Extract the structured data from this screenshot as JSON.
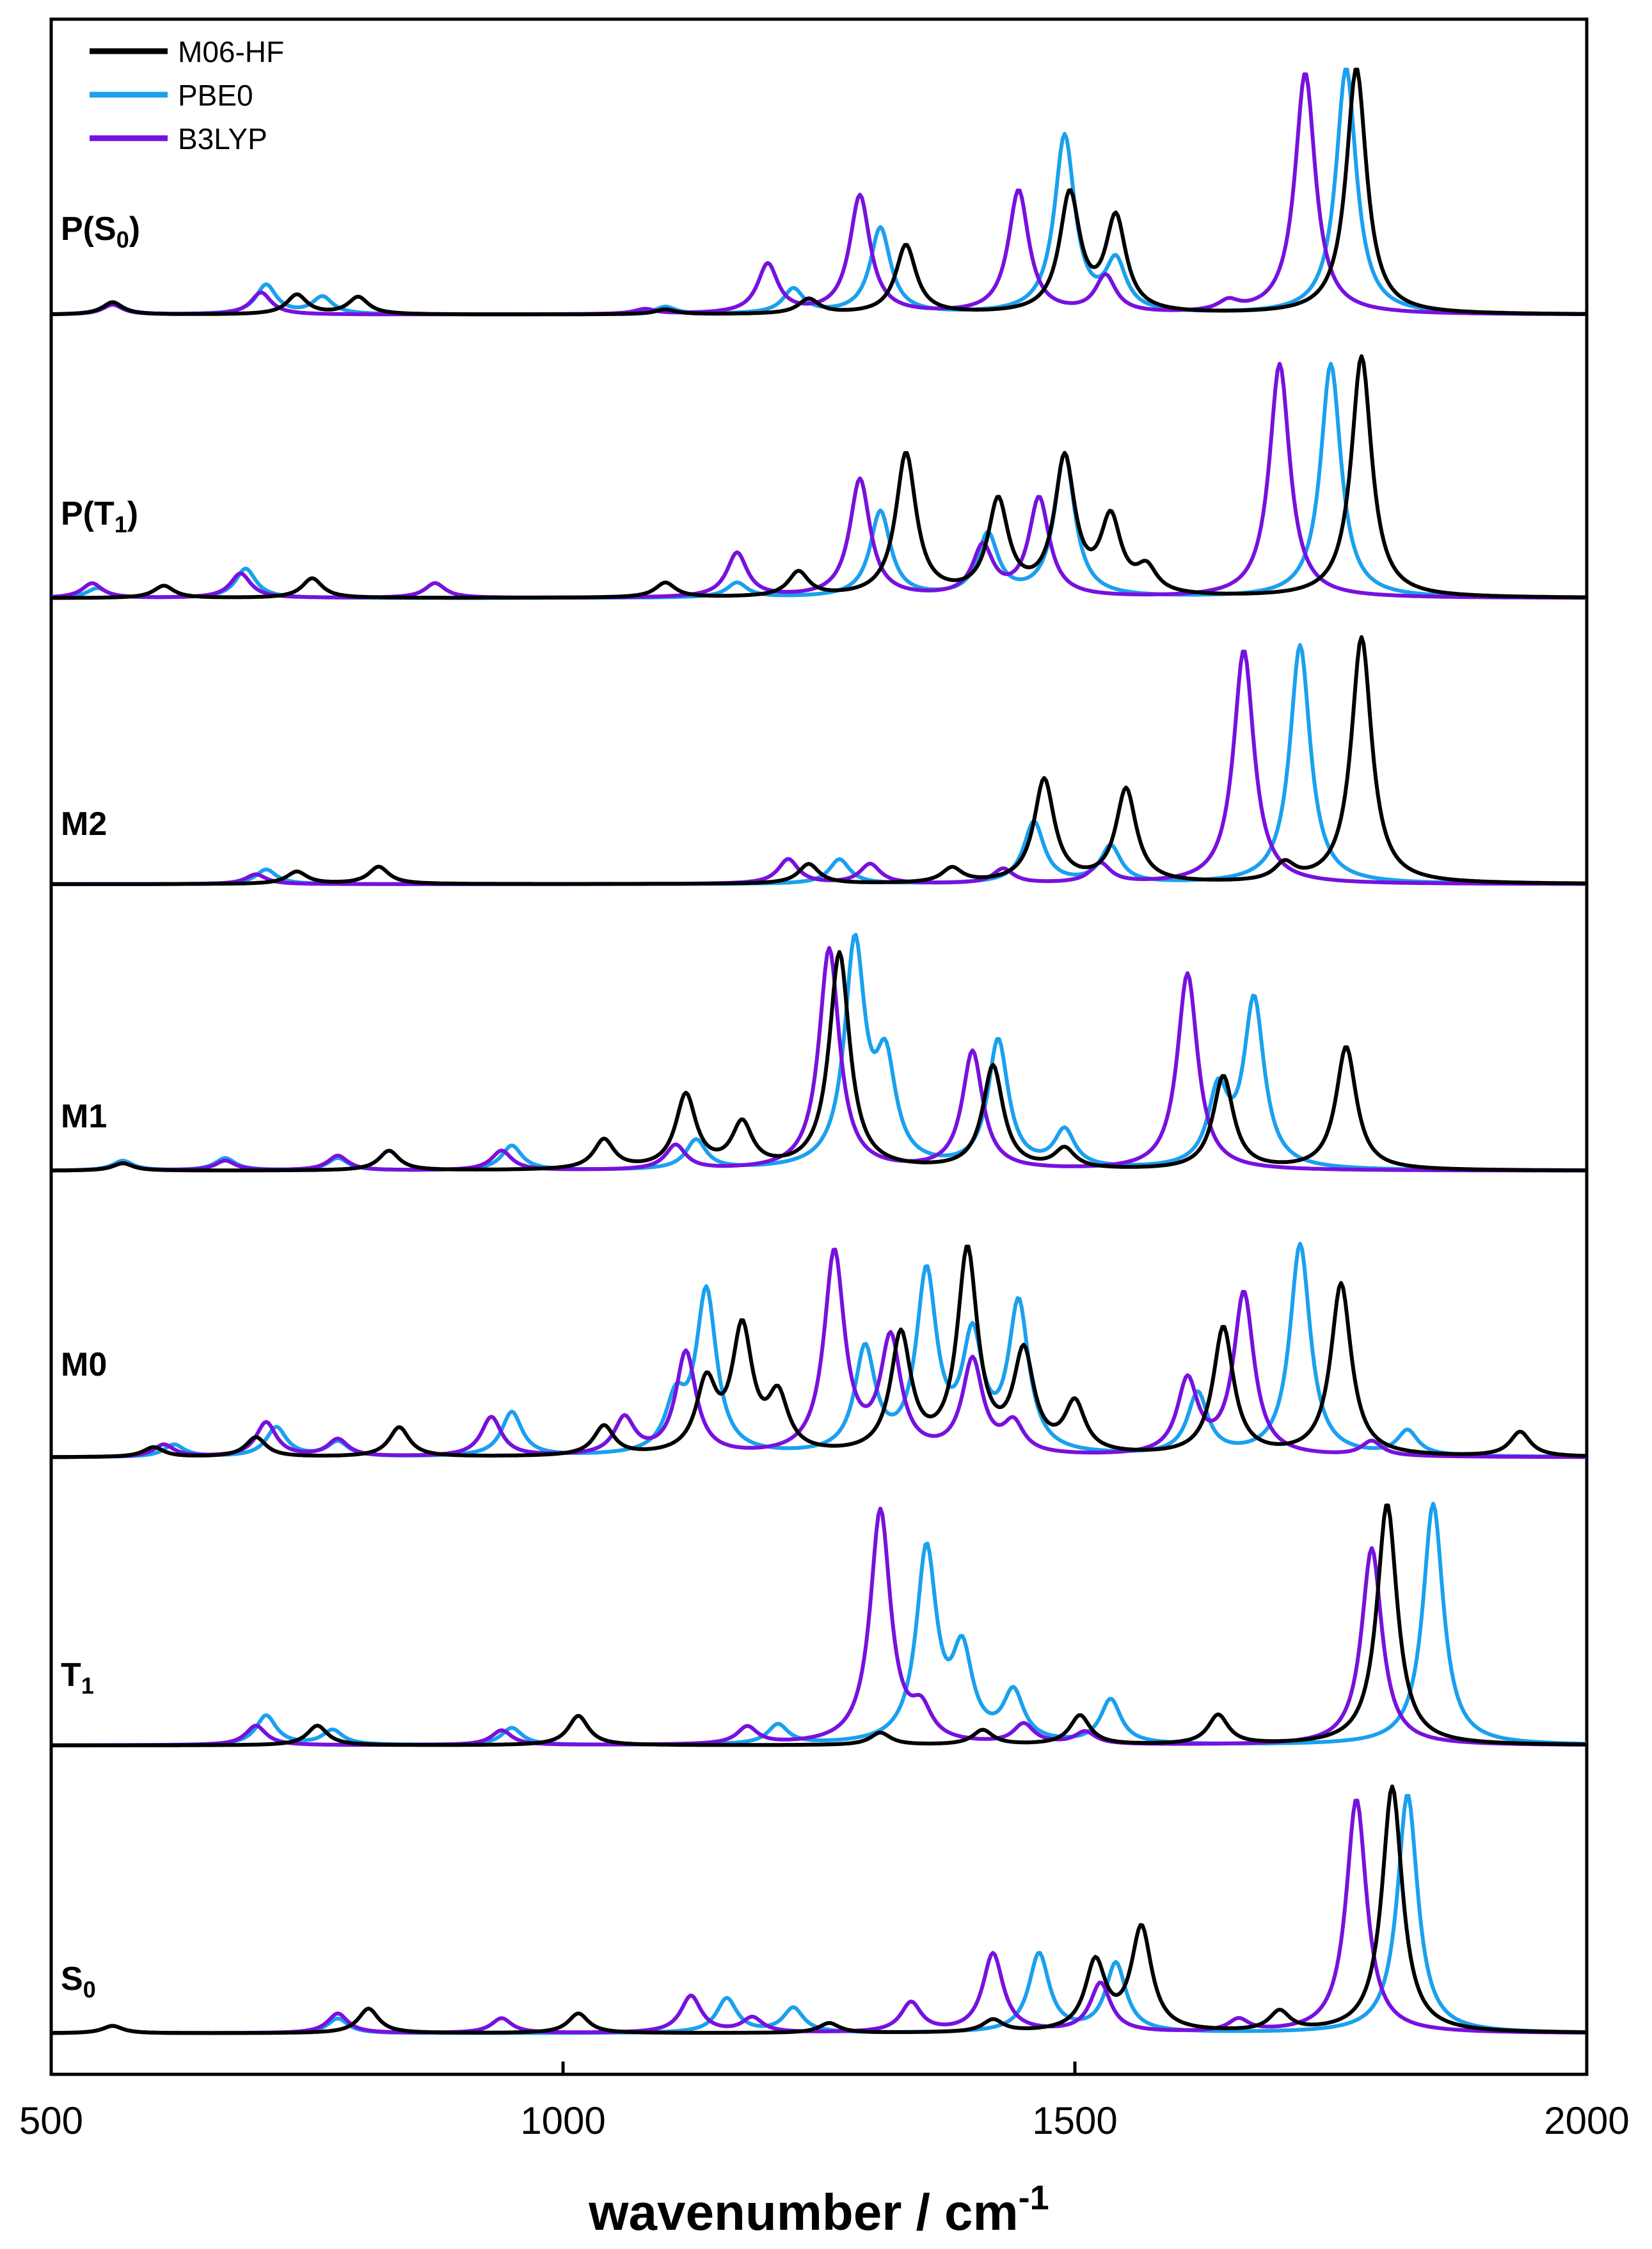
{
  "chart_data": {
    "type": "line",
    "title": "",
    "xlabel": "wavenumber / cm",
    "xlabel_superscript": "-1",
    "ylabel": "",
    "xlim": [
      500,
      2000
    ],
    "x_ticks": [
      500,
      1000,
      1500,
      2000
    ],
    "x_tick_labels": [
      "500",
      "1000",
      "1500",
      "2000"
    ],
    "legend": {
      "placement": "top-left",
      "entries": [
        {
          "name": "M06-HF",
          "color": "#000000"
        },
        {
          "name": "PBE0",
          "color": "#1aa0ee"
        },
        {
          "name": "B3LYP",
          "color": "#7711dd"
        }
      ]
    },
    "panels": [
      {
        "id": "PS0",
        "label_main": "P(S",
        "label_sub": "0",
        "label_end": ")",
        "series": [
          {
            "name": "M06-HF",
            "peaks": [
              [
                560,
                0.05
              ],
              [
                740,
                0.08
              ],
              [
                800,
                0.07
              ],
              [
                1100,
                0.02
              ],
              [
                1240,
                0.06
              ],
              [
                1335,
                0.28
              ],
              [
                1495,
                0.48
              ],
              [
                1540,
                0.38
              ],
              [
                1775,
                1.0
              ]
            ]
          },
          {
            "name": "PBE0",
            "peaks": [
              [
                560,
                0.05
              ],
              [
                710,
                0.12
              ],
              [
                765,
                0.07
              ],
              [
                1100,
                0.03
              ],
              [
                1225,
                0.1
              ],
              [
                1310,
                0.35
              ],
              [
                1490,
                0.72
              ],
              [
                1540,
                0.2
              ],
              [
                1765,
                1.0
              ]
            ]
          },
          {
            "name": "B3LYP",
            "peaks": [
              [
                560,
                0.04
              ],
              [
                705,
                0.09
              ],
              [
                1080,
                0.02
              ],
              [
                1200,
                0.2
              ],
              [
                1290,
                0.48
              ],
              [
                1445,
                0.5
              ],
              [
                1530,
                0.15
              ],
              [
                1650,
                0.04
              ],
              [
                1725,
                0.98
              ]
            ]
          }
        ]
      },
      {
        "id": "PT1",
        "label_main": "P(T",
        "label_sub": "1",
        "label_end": ")",
        "series": [
          {
            "name": "M06-HF",
            "peaks": [
              [
                610,
                0.05
              ],
              [
                755,
                0.08
              ],
              [
                1100,
                0.06
              ],
              [
                1230,
                0.1
              ],
              [
                1335,
                0.58
              ],
              [
                1425,
                0.38
              ],
              [
                1490,
                0.55
              ],
              [
                1535,
                0.3
              ],
              [
                1570,
                0.1
              ],
              [
                1780,
                0.98
              ]
            ]
          },
          {
            "name": "PBE0",
            "peaks": [
              [
                545,
                0.04
              ],
              [
                690,
                0.12
              ],
              [
                1170,
                0.06
              ],
              [
                1310,
                0.35
              ],
              [
                1415,
                0.25
              ],
              [
                1490,
                0.58
              ],
              [
                1750,
                0.95
              ]
            ]
          },
          {
            "name": "B3LYP",
            "peaks": [
              [
                540,
                0.06
              ],
              [
                685,
                0.1
              ],
              [
                875,
                0.06
              ],
              [
                1170,
                0.18
              ],
              [
                1290,
                0.48
              ],
              [
                1410,
                0.2
              ],
              [
                1465,
                0.4
              ],
              [
                1700,
                0.95
              ]
            ]
          }
        ]
      },
      {
        "id": "M2",
        "label_main": "M2",
        "label_sub": "",
        "label_end": "",
        "series": [
          {
            "name": "M06-HF",
            "peaks": [
              [
                740,
                0.05
              ],
              [
                820,
                0.07
              ],
              [
                1240,
                0.08
              ],
              [
                1380,
                0.06
              ],
              [
                1470,
                0.42
              ],
              [
                1550,
                0.38
              ],
              [
                1705,
                0.07
              ],
              [
                1780,
                1.0
              ]
            ]
          },
          {
            "name": "PBE0",
            "peaks": [
              [
                710,
                0.06
              ],
              [
                1270,
                0.1
              ],
              [
                1460,
                0.25
              ],
              [
                1535,
                0.15
              ],
              [
                1720,
                0.97
              ]
            ]
          },
          {
            "name": "B3LYP",
            "peaks": [
              [
                700,
                0.04
              ],
              [
                1220,
                0.1
              ],
              [
                1300,
                0.08
              ],
              [
                1430,
                0.06
              ],
              [
                1525,
                0.08
              ],
              [
                1665,
                0.95
              ]
            ]
          }
        ]
      },
      {
        "id": "M1",
        "label_main": "M1",
        "label_sub": "",
        "label_end": "",
        "series": [
          {
            "name": "M06-HF",
            "peaks": [
              [
                570,
                0.03
              ],
              [
                830,
                0.08
              ],
              [
                1040,
                0.12
              ],
              [
                1120,
                0.3
              ],
              [
                1175,
                0.18
              ],
              [
                1270,
                0.88
              ],
              [
                1420,
                0.42
              ],
              [
                1490,
                0.08
              ],
              [
                1645,
                0.38
              ],
              [
                1765,
                0.5
              ]
            ]
          },
          {
            "name": "PBE0",
            "peaks": [
              [
                570,
                0.04
              ],
              [
                670,
                0.05
              ],
              [
                780,
                0.05
              ],
              [
                950,
                0.1
              ],
              [
                1130,
                0.12
              ],
              [
                1285,
                0.9
              ],
              [
                1315,
                0.4
              ],
              [
                1425,
                0.52
              ],
              [
                1490,
                0.15
              ],
              [
                1640,
                0.3
              ],
              [
                1675,
                0.68
              ]
            ]
          },
          {
            "name": "B3LYP",
            "peaks": [
              [
                570,
                0.03
              ],
              [
                670,
                0.04
              ],
              [
                780,
                0.06
              ],
              [
                940,
                0.08
              ],
              [
                1110,
                0.1
              ],
              [
                1260,
                0.9
              ],
              [
                1400,
                0.48
              ],
              [
                1610,
                0.8
              ]
            ]
          }
        ]
      },
      {
        "id": "M0",
        "label_main": "M0",
        "label_sub": "",
        "label_end": "",
        "series": [
          {
            "name": "M06-HF",
            "peaks": [
              [
                600,
                0.04
              ],
              [
                700,
                0.08
              ],
              [
                840,
                0.12
              ],
              [
                1040,
                0.12
              ],
              [
                1140,
                0.28
              ],
              [
                1175,
                0.5
              ],
              [
                1210,
                0.22
              ],
              [
                1330,
                0.48
              ],
              [
                1395,
                0.82
              ],
              [
                1450,
                0.4
              ],
              [
                1500,
                0.2
              ],
              [
                1645,
                0.52
              ],
              [
                1760,
                0.7
              ],
              [
                1935,
                0.1
              ]
            ]
          },
          {
            "name": "PBE0",
            "peaks": [
              [
                620,
                0.05
              ],
              [
                720,
                0.12
              ],
              [
                780,
                0.06
              ],
              [
                950,
                0.18
              ],
              [
                1110,
                0.2
              ],
              [
                1140,
                0.66
              ],
              [
                1295,
                0.42
              ],
              [
                1355,
                0.72
              ],
              [
                1400,
                0.45
              ],
              [
                1445,
                0.6
              ],
              [
                1620,
                0.25
              ],
              [
                1720,
                0.86
              ],
              [
                1825,
                0.1
              ]
            ]
          },
          {
            "name": "B3LYP",
            "peaks": [
              [
                610,
                0.05
              ],
              [
                710,
                0.14
              ],
              [
                780,
                0.07
              ],
              [
                930,
                0.16
              ],
              [
                1060,
                0.15
              ],
              [
                1120,
                0.42
              ],
              [
                1265,
                0.82
              ],
              [
                1320,
                0.46
              ],
              [
                1400,
                0.38
              ],
              [
                1440,
                0.12
              ],
              [
                1610,
                0.3
              ],
              [
                1665,
                0.66
              ],
              [
                1790,
                0.06
              ]
            ]
          }
        ]
      },
      {
        "id": "T1",
        "label_main": "T",
        "label_sub": "1",
        "label_end": "",
        "series": [
          {
            "name": "M06-HF",
            "peaks": [
              [
                760,
                0.08
              ],
              [
                1015,
                0.12
              ],
              [
                1310,
                0.05
              ],
              [
                1410,
                0.06
              ],
              [
                1505,
                0.12
              ],
              [
                1640,
                0.12
              ],
              [
                1805,
                0.98
              ]
            ]
          },
          {
            "name": "PBE0",
            "peaks": [
              [
                710,
                0.12
              ],
              [
                775,
                0.06
              ],
              [
                950,
                0.07
              ],
              [
                1210,
                0.08
              ],
              [
                1355,
                0.78
              ],
              [
                1390,
                0.35
              ],
              [
                1440,
                0.2
              ],
              [
                1535,
                0.18
              ],
              [
                1850,
                0.98
              ]
            ]
          },
          {
            "name": "B3LYP",
            "peaks": [
              [
                700,
                0.08
              ],
              [
                940,
                0.06
              ],
              [
                1180,
                0.07
              ],
              [
                1310,
                0.95
              ],
              [
                1350,
                0.12
              ],
              [
                1450,
                0.08
              ],
              [
                1510,
                0.05
              ],
              [
                1790,
                0.8
              ]
            ]
          }
        ]
      },
      {
        "id": "S0",
        "label_main": "S",
        "label_sub": "0",
        "label_end": "",
        "series": [
          {
            "name": "M06-HF",
            "peaks": [
              [
                560,
                0.03
              ],
              [
                810,
                0.1
              ],
              [
                1015,
                0.08
              ],
              [
                1260,
                0.04
              ],
              [
                1420,
                0.05
              ],
              [
                1520,
                0.28
              ],
              [
                1565,
                0.42
              ],
              [
                1700,
                0.08
              ],
              [
                1810,
                1.0
              ]
            ]
          },
          {
            "name": "PBE0",
            "peaks": [
              [
                560,
                0.03
              ],
              [
                780,
                0.06
              ],
              [
                1160,
                0.14
              ],
              [
                1225,
                0.1
              ],
              [
                1465,
                0.32
              ],
              [
                1540,
                0.28
              ],
              [
                1825,
                0.97
              ]
            ]
          },
          {
            "name": "B3LYP",
            "peaks": [
              [
                560,
                0.03
              ],
              [
                780,
                0.08
              ],
              [
                940,
                0.06
              ],
              [
                1125,
                0.15
              ],
              [
                1185,
                0.06
              ],
              [
                1340,
                0.12
              ],
              [
                1420,
                0.32
              ],
              [
                1525,
                0.2
              ],
              [
                1660,
                0.05
              ],
              [
                1775,
                0.95
              ]
            ]
          }
        ]
      }
    ]
  }
}
